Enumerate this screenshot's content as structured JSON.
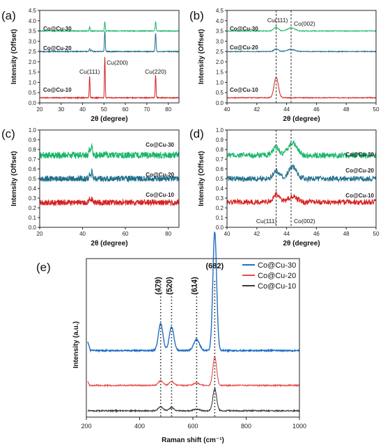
{
  "colors": {
    "co30_xrd": "#19b56b",
    "co20_xrd": "#1f6e8c",
    "co10_xrd": "#d62020",
    "co30_raman": "#1f6fc4",
    "co20_raman": "#e84a4a",
    "co10_raman": "#3a3a3a"
  },
  "chart_data": [
    {
      "type": "line",
      "panel_label": "(a)",
      "xlabel": "2θ (degree)",
      "ylabel": "Intensity (Offset)",
      "xlim": [
        20,
        85
      ],
      "ylim": [
        0,
        4.5
      ],
      "xticks": [
        "20",
        "30",
        "40",
        "50",
        "60",
        "70",
        "80"
      ],
      "yticks": [
        "0.0",
        "0.5",
        "1.0",
        "1.5",
        "2.0",
        "2.5",
        "3.0",
        "3.5",
        "4.0",
        "4.5"
      ],
      "series": [
        {
          "name": "Co@Cu-30",
          "baseline": 3.5,
          "noise": 0.02,
          "peaks": [
            [
              43.3,
              0.2,
              0.28
            ],
            [
              50.4,
              0.45,
              0.28
            ],
            [
              74.1,
              0.45,
              0.3
            ]
          ]
        },
        {
          "name": "Co@Cu-20",
          "baseline": 2.5,
          "noise": 0.02,
          "peaks": [
            [
              43.3,
              0.15,
              0.28
            ],
            [
              44.2,
              0.08,
              0.3
            ],
            [
              50.4,
              1.0,
              0.28
            ],
            [
              74.1,
              0.9,
              0.3
            ]
          ]
        },
        {
          "name": "Co@Cu-10",
          "baseline": 0.25,
          "noise": 0.02,
          "peaks": [
            [
              43.3,
              1.05,
              0.25
            ],
            [
              50.4,
              2.0,
              0.25
            ],
            [
              74.1,
              1.1,
              0.28
            ]
          ]
        }
      ],
      "annotations": [
        "Cu(111)",
        "Cu(200)",
        "Cu(220)"
      ]
    },
    {
      "type": "line",
      "panel_label": "(b)",
      "xlabel": "2θ (degree)",
      "ylabel": "Intensity (Offset)",
      "xlim": [
        40,
        50
      ],
      "ylim": [
        0,
        4.5
      ],
      "xticks": [
        "40",
        "42",
        "44",
        "46",
        "48",
        "50"
      ],
      "yticks": [
        "0.0",
        "0.5",
        "1.0",
        "1.5",
        "2.0",
        "2.5",
        "3.0",
        "3.5",
        "4.0",
        "4.5"
      ],
      "series": [
        {
          "name": "Co@Cu-30",
          "baseline": 3.5,
          "noise": 0.02,
          "peaks": [
            [
              43.3,
              0.18,
              0.22
            ],
            [
              44.3,
              0.15,
              0.35
            ]
          ]
        },
        {
          "name": "Co@Cu-20",
          "baseline": 2.5,
          "noise": 0.02,
          "peaks": [
            [
              43.3,
              0.12,
              0.22
            ],
            [
              44.3,
              0.1,
              0.35
            ]
          ]
        },
        {
          "name": "Co@Cu-10",
          "baseline": 0.25,
          "noise": 0.02,
          "peaks": [
            [
              43.3,
              1.0,
              0.2
            ]
          ]
        }
      ],
      "vlines": [
        43.3,
        44.3
      ],
      "annotations": [
        "Cu(111)",
        "Co(002)"
      ]
    },
    {
      "type": "line",
      "panel_label": "(c)",
      "xlabel": "2θ (degree)",
      "ylabel": "Intensity (Offset)",
      "xlim": [
        20,
        85
      ],
      "ylim": [
        0,
        1.0
      ],
      "xticks": [
        "20",
        "40",
        "60",
        "80"
      ],
      "yticks": [
        "0.0",
        "0.1",
        "0.2",
        "0.3",
        "0.4",
        "0.5",
        "0.6",
        "0.7",
        "0.8",
        "0.9",
        "1.0"
      ],
      "series": [
        {
          "name": "Co@Cu-30",
          "baseline": 0.74,
          "noise": 0.035,
          "peaks": [
            [
              43.3,
              0.06,
              0.4
            ],
            [
              44.4,
              0.1,
              0.4
            ],
            [
              50.5,
              0.03,
              0.5
            ]
          ]
        },
        {
          "name": "Co@Cu-20",
          "baseline": 0.5,
          "noise": 0.03,
          "peaks": [
            [
              43.3,
              0.06,
              0.4
            ],
            [
              44.4,
              0.08,
              0.4
            ]
          ]
        },
        {
          "name": "Co@Cu-10",
          "baseline": 0.255,
          "noise": 0.03,
          "peaks": [
            [
              43.3,
              0.06,
              0.4
            ],
            [
              44.4,
              0.04,
              0.4
            ]
          ]
        }
      ]
    },
    {
      "type": "line",
      "panel_label": "(d)",
      "xlabel": "2θ (degree)",
      "ylabel": "Intensity (Offset)",
      "xlim": [
        40,
        50
      ],
      "ylim": [
        0,
        1.0
      ],
      "xticks": [
        "40",
        "42",
        "44",
        "46",
        "48",
        "50"
      ],
      "yticks": [
        "0.0",
        "0.1",
        "0.2",
        "0.3",
        "0.4",
        "0.5",
        "0.6",
        "0.7",
        "0.8",
        "0.9",
        "1.0"
      ],
      "series": [
        {
          "name": "Co@Cu-30",
          "baseline": 0.74,
          "noise": 0.03,
          "peaks": [
            [
              43.3,
              0.08,
              0.3
            ],
            [
              44.4,
              0.13,
              0.4
            ]
          ]
        },
        {
          "name": "Co@Cu-20",
          "baseline": 0.5,
          "noise": 0.028,
          "peaks": [
            [
              43.3,
              0.08,
              0.3
            ],
            [
              44.4,
              0.12,
              0.4
            ]
          ]
        },
        {
          "name": "Co@Cu-10",
          "baseline": 0.26,
          "noise": 0.028,
          "peaks": [
            [
              43.3,
              0.08,
              0.3
            ],
            [
              44.4,
              0.06,
              0.4
            ]
          ]
        }
      ],
      "vlines": [
        43.3,
        44.3
      ],
      "annotations": [
        "Cu(111)",
        "Co(002)"
      ]
    },
    {
      "type": "line",
      "panel_label": "(e)",
      "xlabel": "Raman shift (cm⁻¹)",
      "ylabel": "Intensity (a.u.)",
      "xlim": [
        200,
        1000
      ],
      "xticks": [
        "200",
        "400",
        "600",
        "800",
        "1000"
      ],
      "legend_position": "top-right",
      "series": [
        {
          "name": "Co@Cu-30",
          "baseline": 0.42,
          "noise": 0.004,
          "peaks": [
            [
              479,
              0.17,
              12
            ],
            [
              520,
              0.15,
              12
            ],
            [
              614,
              0.07,
              15
            ],
            [
              682,
              0.75,
              10
            ]
          ]
        },
        {
          "name": "Co@Cu-20",
          "baseline": 0.2,
          "noise": 0.004,
          "peaks": [
            [
              479,
              0.03,
              12
            ],
            [
              520,
              0.025,
              12
            ],
            [
              614,
              0.015,
              15
            ],
            [
              682,
              0.18,
              10
            ]
          ]
        },
        {
          "name": "Co@Cu-10",
          "baseline": 0.04,
          "noise": 0.004,
          "peaks": [
            [
              479,
              0.025,
              12
            ],
            [
              520,
              0.02,
              12
            ],
            [
              614,
              0.01,
              15
            ],
            [
              682,
              0.14,
              10
            ]
          ]
        }
      ],
      "vlines": [
        479,
        520,
        614,
        682
      ],
      "annotations": [
        "(479)",
        "(520)",
        "(614)",
        "(682)"
      ]
    }
  ]
}
